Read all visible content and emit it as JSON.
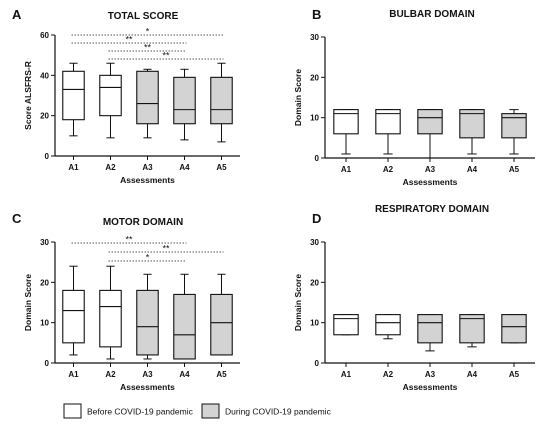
{
  "legend": {
    "items": [
      {
        "label": "Before COVID-19 pandemic",
        "color": "#ffffff"
      },
      {
        "label": "During COVID-19 pandemic",
        "color": "#d3d3d3"
      }
    ]
  },
  "colors": {
    "before": "#ffffff",
    "during": "#d3d3d3",
    "stroke": "#111111",
    "sig_line": "#555555"
  },
  "chart_data": [
    {
      "panel": "A",
      "type": "boxplot",
      "title": "TOTAL SCORE",
      "xlabel": "Assessments",
      "ylabel": "Score ALSFRS-R",
      "ylim": [
        0,
        60
      ],
      "yticks": [
        0,
        20,
        40,
        60
      ],
      "categories": [
        "A1",
        "A2",
        "A3",
        "A4",
        "A5"
      ],
      "groups": [
        "before",
        "before",
        "during",
        "during",
        "during"
      ],
      "boxes": [
        {
          "min": 10,
          "q1": 18,
          "median": 33,
          "q3": 42,
          "max": 46
        },
        {
          "min": 9,
          "q1": 20,
          "median": 34,
          "q3": 40,
          "max": 46
        },
        {
          "min": 9,
          "q1": 16,
          "median": 26,
          "q3": 42,
          "max": 43
        },
        {
          "min": 8,
          "q1": 16,
          "median": 23,
          "q3": 39,
          "max": 43
        },
        {
          "min": 7,
          "q1": 16,
          "median": 23,
          "q3": 39,
          "max": 46
        }
      ],
      "significance": [
        {
          "from": "A1",
          "to": "A5",
          "label": "*"
        },
        {
          "from": "A1",
          "to": "A4",
          "label": "**"
        },
        {
          "from": "A2",
          "to": "A4",
          "label": "**"
        },
        {
          "from": "A2",
          "to": "A5",
          "label": "**"
        }
      ]
    },
    {
      "panel": "B",
      "type": "boxplot",
      "title": "BULBAR DOMAIN",
      "xlabel": "Assessments",
      "ylabel": "Domain Score",
      "ylim": [
        0,
        30
      ],
      "yticks": [
        0,
        10,
        20,
        30
      ],
      "categories": [
        "A1",
        "A2",
        "A3",
        "A4",
        "A5"
      ],
      "groups": [
        "before",
        "before",
        "during",
        "during",
        "during"
      ],
      "boxes": [
        {
          "min": 1,
          "q1": 6,
          "median": 11,
          "q3": 12,
          "max": 12
        },
        {
          "min": 1,
          "q1": 6,
          "median": 11,
          "q3": 12,
          "max": 12
        },
        {
          "min": 0,
          "q1": 6,
          "median": 10,
          "q3": 12,
          "max": 12
        },
        {
          "min": 1,
          "q1": 5,
          "median": 11,
          "q3": 12,
          "max": 12
        },
        {
          "min": 1,
          "q1": 5,
          "median": 10,
          "q3": 11,
          "max": 12
        }
      ],
      "significance": []
    },
    {
      "panel": "C",
      "type": "boxplot",
      "title": "MOTOR DOMAIN",
      "xlabel": "Assessments",
      "ylabel": "Domain Score",
      "ylim": [
        0,
        30
      ],
      "yticks": [
        0,
        10,
        20,
        30
      ],
      "categories": [
        "A1",
        "A2",
        "A3",
        "A4",
        "A5"
      ],
      "groups": [
        "before",
        "before",
        "during",
        "during",
        "during"
      ],
      "boxes": [
        {
          "min": 2,
          "q1": 5,
          "median": 13,
          "q3": 18,
          "max": 24
        },
        {
          "min": 1,
          "q1": 4,
          "median": 14,
          "q3": 18,
          "max": 24
        },
        {
          "min": 1,
          "q1": 2,
          "median": 9,
          "q3": 18,
          "max": 22
        },
        {
          "min": 1,
          "q1": 1,
          "median": 7,
          "q3": 17,
          "max": 22
        },
        {
          "min": 2,
          "q1": 2,
          "median": 10,
          "q3": 17,
          "max": 22
        }
      ],
      "significance": [
        {
          "from": "A1",
          "to": "A4",
          "label": "**"
        },
        {
          "from": "A2",
          "to": "A5",
          "label": "**"
        },
        {
          "from": "A2",
          "to": "A4",
          "label": "*"
        }
      ]
    },
    {
      "panel": "D",
      "type": "boxplot",
      "title": "RESPIRATORY DOMAIN",
      "xlabel": "Assessments",
      "ylabel": "Domain Score",
      "ylim": [
        0,
        30
      ],
      "yticks": [
        0,
        10,
        20,
        30
      ],
      "categories": [
        "A1",
        "A2",
        "A3",
        "A4",
        "A5"
      ],
      "groups": [
        "before",
        "before",
        "during",
        "during",
        "during"
      ],
      "boxes": [
        {
          "min": 7,
          "q1": 7,
          "median": 11,
          "q3": 12,
          "max": 12
        },
        {
          "min": 6,
          "q1": 7,
          "median": 10,
          "q3": 12,
          "max": 12
        },
        {
          "min": 3,
          "q1": 5,
          "median": 10,
          "q3": 12,
          "max": 12
        },
        {
          "min": 4,
          "q1": 5,
          "median": 11,
          "q3": 12,
          "max": 12
        },
        {
          "min": 5,
          "q1": 5,
          "median": 9,
          "q3": 12,
          "max": 12
        }
      ],
      "significance": []
    }
  ]
}
